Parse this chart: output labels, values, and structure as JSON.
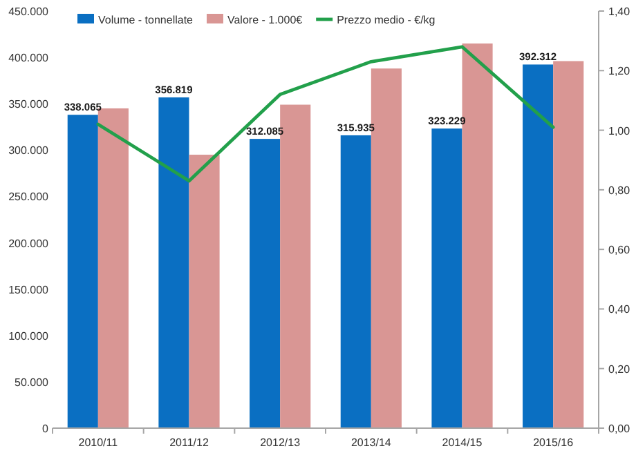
{
  "chart_data": {
    "type": "bar",
    "categories": [
      "2010/11",
      "2011/12",
      "2012/13",
      "2013/14",
      "2014/15",
      "2015/16"
    ],
    "series": [
      {
        "name": "Volume - tonnellate",
        "color": "#0a6fc2",
        "values": [
          338065,
          356819,
          312085,
          315935,
          323229,
          392312
        ],
        "value_labels": [
          "338.065",
          "356.819",
          "312.085",
          "315.935",
          "323.229",
          "392.312"
        ]
      },
      {
        "name": "Valore - 1.000€",
        "color": "#d99694",
        "values": [
          345000,
          295000,
          349000,
          388000,
          415000,
          396000
        ]
      },
      {
        "name": "Prezzo medio - €/kg",
        "type": "line",
        "axis": "y2",
        "color": "#22a04b",
        "values": [
          1.02,
          0.83,
          1.12,
          1.23,
          1.28,
          1.01
        ]
      }
    ],
    "ylim": [
      0,
      450000
    ],
    "yticks": [
      0,
      {
        "value": 50000,
        "label": "50.000"
      },
      {
        "value": 100000,
        "label": "100.000"
      },
      {
        "value": 150000,
        "label": "150.000"
      },
      {
        "value": 200000,
        "label": "200.000"
      },
      {
        "value": 250000,
        "label": "250.000"
      },
      {
        "value": 300000,
        "label": "300.000"
      },
      {
        "value": 350000,
        "label": "350.000"
      },
      {
        "value": 400000,
        "label": "400.000"
      },
      {
        "value": 450000,
        "label": "450.000"
      }
    ],
    "y2lim": [
      0,
      1.4
    ],
    "y2ticks": [
      {
        "value": 0,
        "label": "0,00"
      },
      {
        "value": 0.2,
        "label": "0,20"
      },
      {
        "value": 0.4,
        "label": "0,40"
      },
      {
        "value": 0.6,
        "label": "0,60"
      },
      {
        "value": 0.8,
        "label": "0,80"
      },
      {
        "value": 1,
        "label": "1,00"
      },
      {
        "value": 1.2,
        "label": "1,20"
      },
      {
        "value": 1.4,
        "label": "1,40"
      }
    ],
    "legend": "top"
  }
}
